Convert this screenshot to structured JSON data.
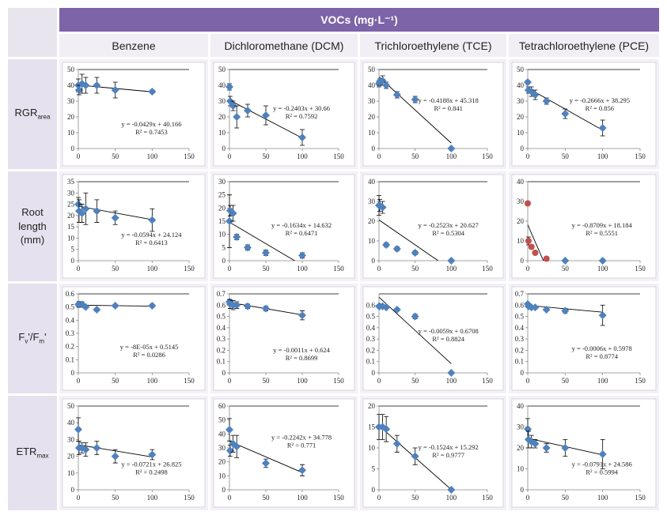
{
  "table": {
    "header": "VOCs (mg·L⁻¹)",
    "columns": [
      "Benzene",
      "Dichloromethane (DCM)",
      "Trichloroethylene (TCE)",
      "Tetrachloroethylene (PCE)"
    ],
    "rows": [
      {
        "parts": [
          {
            "text": "RGR"
          },
          {
            "text": "area",
            "sub": true
          }
        ]
      },
      {
        "parts": [
          {
            "text": "Root length (mm)"
          }
        ]
      },
      {
        "parts": [
          {
            "text": "F"
          },
          {
            "text": "v",
            "sub": true
          },
          {
            "text": "'/F"
          },
          {
            "text": "m",
            "sub": true
          },
          {
            "text": "'"
          }
        ]
      },
      {
        "parts": [
          {
            "text": "ETR"
          },
          {
            "text": "max",
            "sub": true
          }
        ]
      }
    ]
  },
  "chart_data": [
    {
      "type": "scatter",
      "color": "#4f81bd",
      "x": [
        0,
        1,
        5,
        10,
        25,
        50,
        100
      ],
      "y": [
        40,
        37,
        41,
        40,
        40,
        37,
        36
      ],
      "errors": [
        4,
        3,
        6,
        5,
        5,
        5,
        1
      ],
      "xlim": [
        0,
        150
      ],
      "xticks": [
        0,
        50,
        100,
        150
      ],
      "ylim": [
        0,
        50
      ],
      "yticks": [
        0,
        10,
        20,
        30,
        40,
        50
      ],
      "trend": {
        "slope": -0.0429,
        "intercept": 40.166,
        "equation": "y = -0.0429x + 40.166",
        "r2": "R² = 0.7453"
      }
    },
    {
      "type": "scatter",
      "color": "#4f81bd",
      "x": [
        0,
        1,
        5,
        10,
        25,
        50,
        100
      ],
      "y": [
        39,
        30,
        27,
        20,
        24,
        21,
        7
      ],
      "errors": [
        2,
        3,
        3,
        7,
        4,
        6,
        5
      ],
      "xlim": [
        0,
        150
      ],
      "xticks": [
        0,
        50,
        100,
        150
      ],
      "ylim": [
        0,
        50
      ],
      "yticks": [
        0,
        10,
        20,
        30,
        40,
        50
      ],
      "trend": {
        "slope": -0.2403,
        "intercept": 30.66,
        "equation": "y = -0.2403x + 30.66",
        "r2": "R² = 0.7592"
      }
    },
    {
      "type": "scatter",
      "color": "#4f81bd",
      "x": [
        0,
        1,
        5,
        10,
        25,
        50,
        100
      ],
      "y": [
        41,
        42,
        43,
        40,
        34,
        31,
        0
      ],
      "errors": [
        2,
        2,
        3,
        2,
        2,
        2,
        0
      ],
      "xlim": [
        0,
        150
      ],
      "xticks": [
        0,
        50,
        100,
        150
      ],
      "ylim": [
        0,
        50
      ],
      "yticks": [
        0,
        10,
        20,
        30,
        40,
        50
      ],
      "trend": {
        "slope": -0.4188,
        "intercept": 45.318,
        "equation": "y = -0.4188x + 45.318",
        "r2": "R² = 0.841"
      }
    },
    {
      "type": "scatter",
      "color": "#4f81bd",
      "x": [
        0,
        1,
        5,
        10,
        25,
        50,
        100
      ],
      "y": [
        42,
        37,
        36,
        34,
        30,
        22,
        13
      ],
      "errors": [
        1,
        2,
        3,
        3,
        2,
        3,
        5
      ],
      "xlim": [
        0,
        150
      ],
      "xticks": [
        0,
        50,
        100,
        150
      ],
      "ylim": [
        0,
        50
      ],
      "yticks": [
        0,
        10,
        20,
        30,
        40,
        50
      ],
      "trend": {
        "slope": -0.2666,
        "intercept": 38.295,
        "equation": "y = -0.2666x + 38.295",
        "r2": "R² = 0.856"
      }
    },
    {
      "type": "scatter",
      "color": "#4f81bd",
      "x": [
        0,
        1,
        5,
        10,
        25,
        50,
        100
      ],
      "y": [
        25,
        22,
        21,
        23,
        22,
        19,
        18
      ],
      "errors": [
        3,
        5,
        4,
        7,
        5,
        3,
        5
      ],
      "xlim": [
        0,
        150
      ],
      "xticks": [
        0,
        50,
        100,
        150
      ],
      "ylim": [
        0,
        35
      ],
      "yticks": [
        0,
        5,
        10,
        15,
        20,
        25,
        30,
        35
      ],
      "trend": {
        "slope": -0.0594,
        "intercept": 24.124,
        "equation": "y = -0.0594x + 24.124",
        "r2": "R² = 0.6413"
      }
    },
    {
      "type": "scatter",
      "color": "#4f81bd",
      "x": [
        0,
        1,
        5,
        10,
        25,
        50,
        100
      ],
      "y": [
        15,
        19,
        18,
        9,
        5,
        3,
        2
      ],
      "errors": [
        10,
        2,
        3,
        1,
        1,
        1,
        1
      ],
      "xlim": [
        0,
        150
      ],
      "xticks": [
        0,
        50,
        100,
        150
      ],
      "ylim": [
        0,
        30
      ],
      "yticks": [
        0,
        5,
        10,
        15,
        20,
        25,
        30
      ],
      "trend": {
        "slope": -0.1634,
        "intercept": 14.632,
        "equation": "y = -0.1634x + 14.632",
        "r2": "R² = 0.6471"
      }
    },
    {
      "type": "scatter",
      "color": "#4f81bd",
      "x": [
        0,
        1,
        5,
        10,
        25,
        50,
        100
      ],
      "y": [
        28,
        28,
        27,
        8,
        6,
        4,
        0
      ],
      "errors": [
        5,
        3,
        3,
        1,
        1,
        1,
        0
      ],
      "xlim": [
        0,
        150
      ],
      "xticks": [
        0,
        50,
        100,
        150
      ],
      "ylim": [
        0,
        40
      ],
      "yticks": [
        0,
        10,
        20,
        30,
        40
      ],
      "trend": {
        "slope": -0.2523,
        "intercept": 20.627,
        "equation": "y = -0.2523x + 20.627",
        "r2": "R² = 0.5304"
      }
    },
    {
      "type": "scatter",
      "color": "#4f81bd",
      "point_colors": [
        "#c0504d",
        "#c0504d",
        "#c0504d",
        "#c0504d",
        "#c0504d",
        "#4f81bd",
        "#4f81bd"
      ],
      "x": [
        0,
        1,
        5,
        10,
        25,
        50,
        100
      ],
      "y": [
        29,
        10,
        7,
        4,
        1,
        0,
        0
      ],
      "errors": [
        1,
        2,
        1,
        1,
        1,
        0,
        0
      ],
      "xlim": [
        0,
        150
      ],
      "xticks": [
        0,
        50,
        100,
        150
      ],
      "ylim": [
        0,
        40
      ],
      "yticks": [
        0,
        10,
        20,
        30,
        40
      ],
      "trend": {
        "slope": -0.8709,
        "intercept": 18.184,
        "equation": "y = -0.8709x + 18.184",
        "r2": "R² = 0.5551"
      }
    },
    {
      "type": "scatter",
      "color": "#4f81bd",
      "x": [
        0,
        1,
        5,
        10,
        25,
        50,
        100
      ],
      "y": [
        0.52,
        0.52,
        0.52,
        0.5,
        0.48,
        0.51,
        0.51
      ],
      "errors": [
        0.01,
        0.02,
        0.02,
        0.01,
        0.01,
        0.01,
        0.01
      ],
      "xlim": [
        0,
        150
      ],
      "xticks": [
        0,
        50,
        100,
        150
      ],
      "ylim": [
        0,
        0.6
      ],
      "yticks": [
        0,
        0.1,
        0.2,
        0.3,
        0.4,
        0.5,
        0.6
      ],
      "trend": {
        "slope": -8e-05,
        "intercept": 0.5145,
        "equation": "y = -8E-05x + 0.5145",
        "r2": "R² = 0.0286"
      }
    },
    {
      "type": "scatter",
      "color": "#4f81bd",
      "x": [
        0,
        1,
        5,
        10,
        25,
        50,
        100
      ],
      "y": [
        0.63,
        0.61,
        0.6,
        0.6,
        0.59,
        0.57,
        0.51
      ],
      "errors": [
        0.02,
        0.04,
        0.04,
        0.03,
        0.02,
        0.02,
        0.04
      ],
      "xlim": [
        0,
        150
      ],
      "xticks": [
        0,
        50,
        100,
        150
      ],
      "ylim": [
        0,
        0.7
      ],
      "yticks": [
        0,
        0.1,
        0.2,
        0.3,
        0.4,
        0.5,
        0.6,
        0.7
      ],
      "trend": {
        "slope": -0.0011,
        "intercept": 0.624,
        "equation": "y = -0.0011x + 0.624",
        "r2": "R² = 0.8699"
      }
    },
    {
      "type": "scatter",
      "color": "#4f81bd",
      "x": [
        0,
        1,
        5,
        10,
        25,
        50,
        100
      ],
      "y": [
        0.59,
        0.59,
        0.59,
        0.58,
        0.56,
        0.5,
        0
      ],
      "errors": [
        0.01,
        0.01,
        0.01,
        0.01,
        0.01,
        0.02,
        0
      ],
      "xlim": [
        0,
        150
      ],
      "xticks": [
        0,
        50,
        100,
        150
      ],
      "ylim": [
        0,
        0.7
      ],
      "yticks": [
        0,
        0.1,
        0.2,
        0.3,
        0.4,
        0.5,
        0.6
      ],
      "trend": {
        "slope": -0.0059,
        "intercept": 0.6708,
        "equation": "y = -0.0059x + 0.6708",
        "r2": "R² = 0.8824"
      }
    },
    {
      "type": "scatter",
      "color": "#4f81bd",
      "x": [
        0,
        1,
        5,
        10,
        25,
        50,
        100
      ],
      "y": [
        0.61,
        0.59,
        0.58,
        0.58,
        0.56,
        0.55,
        0.51
      ],
      "errors": [
        0.01,
        0.01,
        0.01,
        0.01,
        0.01,
        0.02,
        0.09
      ],
      "xlim": [
        0,
        150
      ],
      "xticks": [
        0,
        50,
        100,
        150
      ],
      "ylim": [
        0,
        0.7
      ],
      "yticks": [
        0,
        0.1,
        0.2,
        0.3,
        0.4,
        0.5,
        0.6,
        0.7
      ],
      "trend": {
        "slope": -0.0006,
        "intercept": 0.5978,
        "equation": "y = -0.0006x + 0.5978",
        "r2": "R² = 0.8774"
      }
    },
    {
      "type": "scatter",
      "color": "#4f81bd",
      "x": [
        0,
        1,
        5,
        10,
        25,
        50,
        100
      ],
      "y": [
        36,
        25,
        25,
        24,
        25,
        20,
        21
      ],
      "errors": [
        7,
        4,
        3,
        4,
        4,
        4,
        3
      ],
      "xlim": [
        0,
        150
      ],
      "xticks": [
        0,
        50,
        100,
        150
      ],
      "ylim": [
        0,
        50
      ],
      "yticks": [
        0,
        10,
        20,
        30,
        40,
        50
      ],
      "trend": {
        "slope": -0.0721,
        "intercept": 26.825,
        "equation": "y = -0.0721x + 26.825",
        "r2": "R² = 0.2498"
      }
    },
    {
      "type": "scatter",
      "color": "#4f81bd",
      "x": [
        0,
        1,
        5,
        10,
        50,
        100
      ],
      "y": [
        43,
        28,
        33,
        31,
        19,
        14
      ],
      "errors": [
        8,
        4,
        6,
        8,
        3,
        4
      ],
      "xlim": [
        0,
        150
      ],
      "xticks": [
        0,
        50,
        100,
        150
      ],
      "ylim": [
        0,
        60
      ],
      "yticks": [
        0,
        10,
        20,
        30,
        40,
        50,
        60
      ],
      "trend": {
        "slope": -0.2242,
        "intercept": 34.778,
        "equation": "y = -0.2242x + 34.778",
        "r2": "R² = 0.771"
      }
    },
    {
      "type": "scatter",
      "color": "#4f81bd",
      "x": [
        0,
        5,
        10,
        25,
        50,
        100
      ],
      "y": [
        15,
        15,
        14.5,
        11,
        8,
        0
      ],
      "errors": [
        3,
        3,
        3,
        2,
        2,
        0
      ],
      "xlim": [
        0,
        150
      ],
      "xticks": [
        0,
        50,
        100,
        150
      ],
      "ylim": [
        0,
        20
      ],
      "yticks": [
        0,
        5,
        10,
        15,
        20
      ],
      "trend": {
        "slope": -0.1524,
        "intercept": 15.292,
        "equation": "y = -0.1524x + 15.292",
        "r2": "R² = 0.9777"
      }
    },
    {
      "type": "scatter",
      "color": "#4f81bd",
      "x": [
        0,
        1,
        5,
        10,
        25,
        50,
        100
      ],
      "y": [
        29,
        24,
        23,
        22,
        20,
        20,
        17
      ],
      "errors": [
        5,
        4,
        3,
        2,
        2,
        4,
        7
      ],
      "xlim": [
        0,
        150
      ],
      "xticks": [
        0,
        50,
        100,
        150
      ],
      "ylim": [
        0,
        40
      ],
      "yticks": [
        0,
        10,
        20,
        30,
        40
      ],
      "trend": {
        "slope": -0.0791,
        "intercept": 24.586,
        "equation": "y = -0.0791x + 24.586",
        "r2": "R² = 0.5994"
      }
    }
  ]
}
